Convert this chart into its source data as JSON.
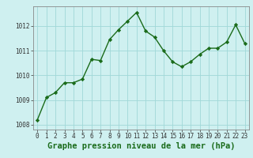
{
  "x": [
    0,
    1,
    2,
    3,
    4,
    5,
    6,
    7,
    8,
    9,
    10,
    11,
    12,
    13,
    14,
    15,
    16,
    17,
    18,
    19,
    20,
    21,
    22,
    23
  ],
  "y": [
    1008.2,
    1009.1,
    1009.3,
    1009.7,
    1009.7,
    1009.85,
    1010.65,
    1010.6,
    1011.45,
    1011.85,
    1012.2,
    1012.55,
    1011.8,
    1011.55,
    1011.0,
    1010.55,
    1010.35,
    1010.55,
    1010.85,
    1011.1,
    1011.1,
    1011.35,
    1012.05,
    1011.3
  ],
  "ylim": [
    1007.8,
    1012.8
  ],
  "yticks": [
    1008,
    1009,
    1010,
    1011,
    1012
  ],
  "xlabel": "Graphe pression niveau de la mer (hPa)",
  "line_color": "#1a6b1a",
  "marker": "D",
  "markersize": 2.2,
  "linewidth": 1.0,
  "bg_color": "#cff0f0",
  "grid_color": "#a0d8d8",
  "tick_fontsize": 5.5,
  "xlabel_fontsize": 7.5
}
